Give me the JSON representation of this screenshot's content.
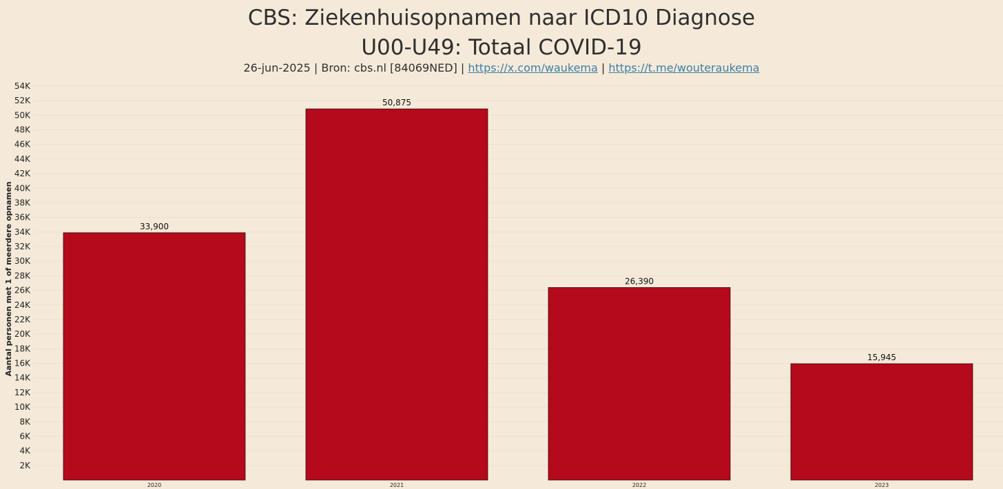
{
  "header": {
    "title_line1": "CBS: Ziekenhuisopnamen naar ICD10 Diagnose",
    "title_line2": "U00-U49: Totaal COVID-19",
    "subtitle_prefix": "26-jun-2025 | Bron: cbs.nl [84069NED] | ",
    "link1": "https://x.com/waukema",
    "separator": " | ",
    "link2": "https://t.me/wouteraukema"
  },
  "colors": {
    "background": "#f5ead9",
    "bar": "#b5091c",
    "link": "#3d7fa6"
  },
  "chart_data": {
    "type": "bar",
    "title": "CBS: Ziekenhuisopnamen naar ICD10 Diagnose U00-U49: Totaal COVID-19",
    "categories": [
      "2020",
      "2021",
      "2022",
      "2023"
    ],
    "values": [
      33900,
      50875,
      26390,
      15945
    ],
    "data_labels": [
      "33,900",
      "50,875",
      "26,390",
      "15,945"
    ],
    "xlabel": "",
    "ylabel": "Aantal personen met 1 of meerdere opnamen",
    "ylim": [
      0,
      54000
    ],
    "yticks": [
      2000,
      4000,
      6000,
      8000,
      10000,
      12000,
      14000,
      16000,
      18000,
      20000,
      22000,
      24000,
      26000,
      28000,
      30000,
      32000,
      34000,
      36000,
      38000,
      40000,
      42000,
      44000,
      46000,
      48000,
      50000,
      52000,
      54000
    ],
    "ytick_labels": [
      "2K",
      "4K",
      "6K",
      "8K",
      "10K",
      "12K",
      "14K",
      "16K",
      "18K",
      "20K",
      "22K",
      "24K",
      "26K",
      "28K",
      "30K",
      "32K",
      "34K",
      "36K",
      "38K",
      "40K",
      "42K",
      "44K",
      "46K",
      "48K",
      "50K",
      "52K",
      "54K"
    ],
    "grid": true,
    "legend": "none"
  }
}
